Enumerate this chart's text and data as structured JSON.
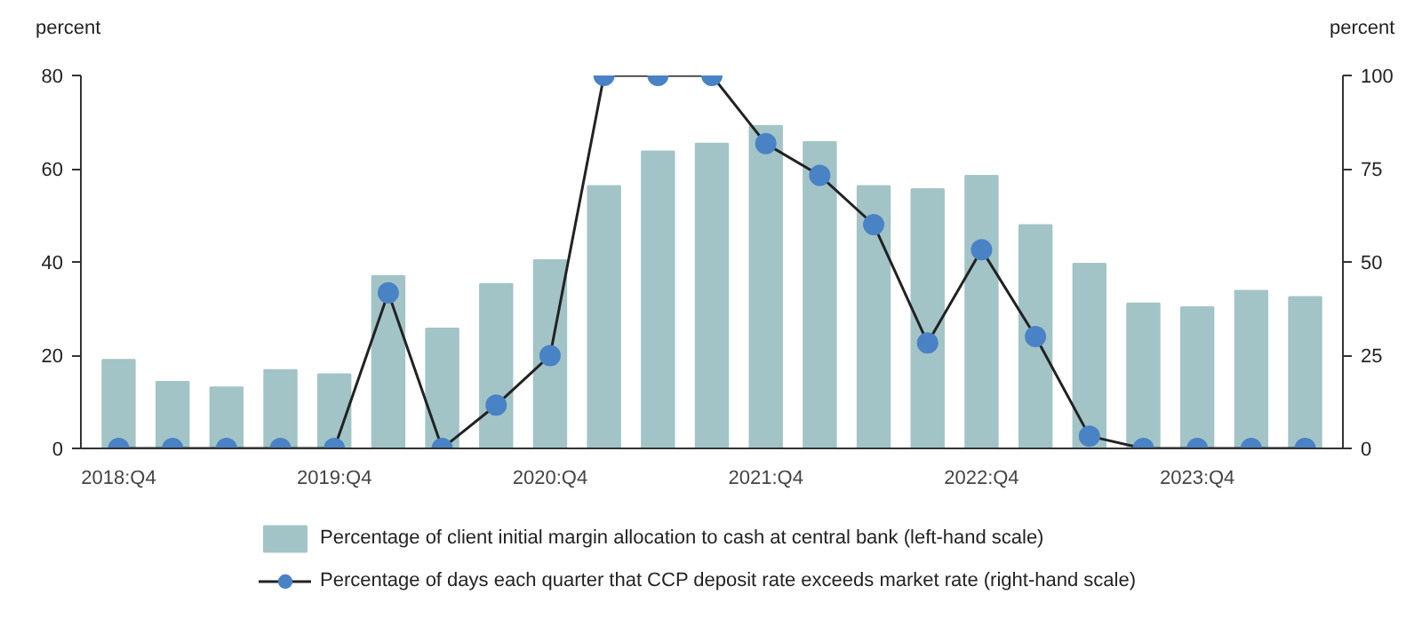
{
  "chart_data": {
    "type": "bar",
    "categories": [
      "2018:Q4",
      null,
      null,
      null,
      "2019:Q4",
      null,
      null,
      null,
      "2020:Q4",
      null,
      null,
      null,
      "2021:Q4",
      null,
      null,
      null,
      "2022:Q4",
      null,
      null,
      null,
      "2023:Q4",
      null,
      null
    ],
    "series": [
      {
        "name": "Percentage of client initial margin allocation to cash at central bank (left-hand scale)",
        "color": "#a2c4c6",
        "values": [
          19.0,
          14.3,
          13.1,
          16.8,
          15.9,
          37.0,
          25.7,
          35.3,
          40.4,
          56.3,
          63.7,
          65.4,
          69.2,
          65.7,
          56.3,
          55.6,
          58.5,
          47.9,
          39.6,
          31.1,
          30.3,
          33.8,
          32.5
        ]
      },
      {
        "name": "Percentage of days each quarter that CCP deposit rate exceeds market rate (right-hand scale)",
        "type": "line",
        "axis": "y2",
        "color": "#4a82c6",
        "marker": "circle",
        "values": [
          0,
          0,
          0,
          0,
          0,
          41.7,
          0,
          11.6,
          24.9,
          100,
          100,
          100,
          81.7,
          73.2,
          60,
          28.3,
          53.3,
          30,
          3.3,
          0,
          0,
          0,
          0
        ]
      }
    ],
    "ylabel": "percent",
    "y2label": "percent",
    "ylim": [
      0,
      80
    ],
    "yticks": [
      0,
      20,
      40,
      60,
      80
    ],
    "y2lim": [
      0,
      100
    ],
    "y2ticks": [
      0,
      25,
      50,
      75,
      100
    ],
    "legend": "bottom",
    "grid": false
  }
}
